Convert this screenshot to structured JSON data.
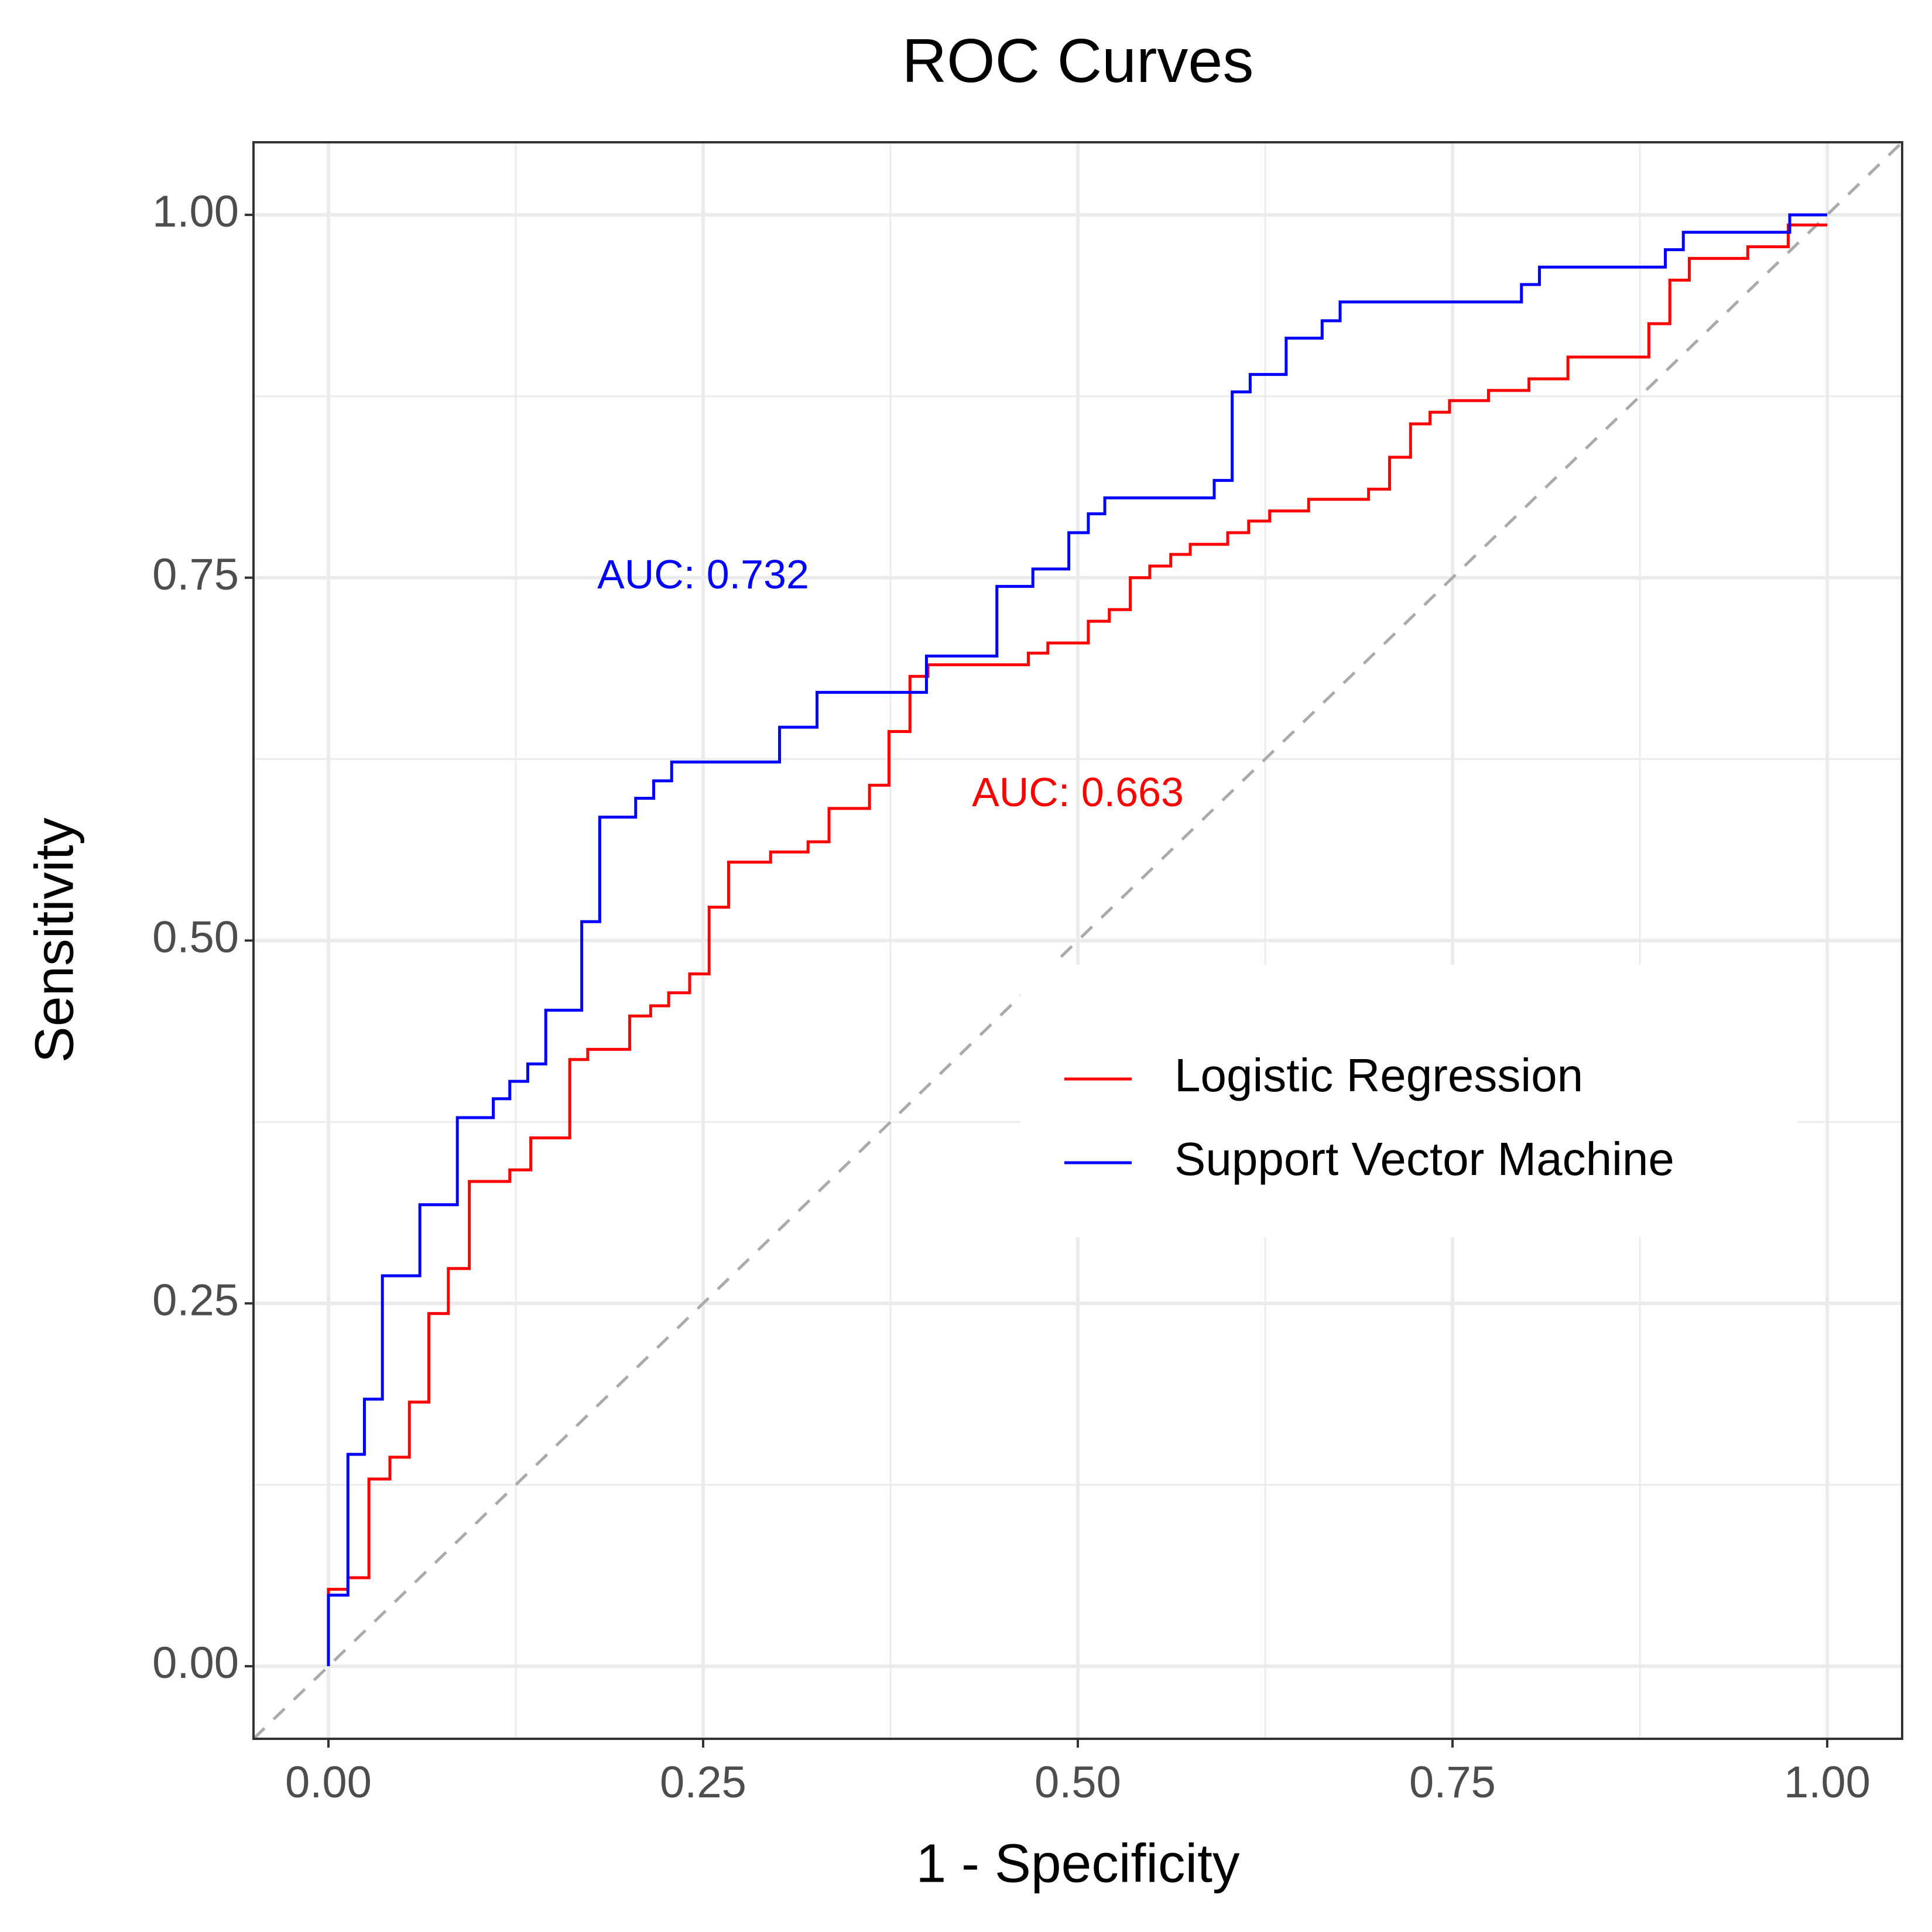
{
  "chart_data": {
    "type": "line",
    "title": "ROC Curves",
    "x_label": "1 - Specificity",
    "y_label": "Sensitivity",
    "xlim": [
      -0.05,
      1.05
    ],
    "ylim": [
      -0.05,
      1.05
    ],
    "xticks": [
      {
        "value": 0,
        "label": "0.00"
      },
      {
        "value": 0.25,
        "label": "0.25"
      },
      {
        "value": 0.5,
        "label": "0.50"
      },
      {
        "value": 0.75,
        "label": "0.75"
      },
      {
        "value": 1,
        "label": "1.00"
      }
    ],
    "yticks": [
      {
        "value": 0,
        "label": "0.00"
      },
      {
        "value": 0.25,
        "label": "0.25"
      },
      {
        "value": 0.5,
        "label": "0.50"
      },
      {
        "value": 0.75,
        "label": "0.75"
      },
      {
        "value": 1,
        "label": "1.00"
      }
    ],
    "grid": true,
    "legend_position": "right",
    "annotations": [
      {
        "text": "AUC: 0.732",
        "color": "#0000ff"
      },
      {
        "text": "AUC: 0.663",
        "color": "#ff0000"
      }
    ],
    "series": [
      {
        "name": "Logistic Regression",
        "color": "#ff0000",
        "x": [
          0,
          0,
          0.013,
          0.013,
          0.027,
          0.027,
          0.041,
          0.041,
          0.054,
          0.054,
          0.067,
          0.067,
          0.08,
          0.08,
          0.094,
          0.094,
          0.121,
          0.121,
          0.135,
          0.135,
          0.161,
          0.161,
          0.173,
          0.173,
          0.201,
          0.201,
          0.215,
          0.215,
          0.227,
          0.227,
          0.241,
          0.241,
          0.254,
          0.254,
          0.267,
          0.267,
          0.295,
          0.295,
          0.32,
          0.32,
          0.334,
          0.334,
          0.361,
          0.361,
          0.374,
          0.374,
          0.388,
          0.388,
          0.4,
          0.4,
          0.467,
          0.467,
          0.48,
          0.48,
          0.507,
          0.507,
          0.521,
          0.521,
          0.535,
          0.535,
          0.548,
          0.548,
          0.562,
          0.562,
          0.575,
          0.575,
          0.6,
          0.6,
          0.614,
          0.614,
          0.628,
          0.628,
          0.654,
          0.654,
          0.694,
          0.694,
          0.708,
          0.708,
          0.722,
          0.722,
          0.735,
          0.735,
          0.748,
          0.748,
          0.774,
          0.774,
          0.801,
          0.801,
          0.827,
          0.827,
          0.881,
          0.881,
          0.895,
          0.895,
          0.908,
          0.908,
          0.947,
          0.947,
          0.974,
          0.974,
          1.0
        ],
        "values": [
          0,
          0.053,
          0.053,
          0.061,
          0.061,
          0.129,
          0.129,
          0.144,
          0.144,
          0.182,
          0.182,
          0.243,
          0.243,
          0.274,
          0.274,
          0.334,
          0.334,
          0.342,
          0.342,
          0.364,
          0.364,
          0.418,
          0.418,
          0.425,
          0.425,
          0.448,
          0.448,
          0.455,
          0.455,
          0.464,
          0.464,
          0.477,
          0.477,
          0.523,
          0.523,
          0.554,
          0.554,
          0.561,
          0.561,
          0.568,
          0.568,
          0.591,
          0.591,
          0.607,
          0.607,
          0.644,
          0.644,
          0.682,
          0.682,
          0.69,
          0.69,
          0.698,
          0.698,
          0.705,
          0.705,
          0.72,
          0.72,
          0.728,
          0.728,
          0.75,
          0.75,
          0.758,
          0.758,
          0.766,
          0.766,
          0.773,
          0.773,
          0.781,
          0.781,
          0.789,
          0.789,
          0.796,
          0.796,
          0.804,
          0.804,
          0.811,
          0.811,
          0.833,
          0.833,
          0.856,
          0.856,
          0.864,
          0.864,
          0.872,
          0.872,
          0.879,
          0.879,
          0.887,
          0.887,
          0.902,
          0.902,
          0.925,
          0.925,
          0.955,
          0.955,
          0.97,
          0.97,
          0.978,
          0.978,
          0.993,
          0.993
        ]
      },
      {
        "name": "Support Vector Machine",
        "color": "#0000ff",
        "x": [
          0,
          0,
          0.013,
          0.013,
          0.024,
          0.024,
          0.036,
          0.036,
          0.061,
          0.061,
          0.086,
          0.086,
          0.11,
          0.11,
          0.121,
          0.121,
          0.133,
          0.133,
          0.145,
          0.145,
          0.169,
          0.169,
          0.181,
          0.181,
          0.205,
          0.205,
          0.217,
          0.217,
          0.229,
          0.229,
          0.301,
          0.301,
          0.326,
          0.326,
          0.399,
          0.399,
          0.446,
          0.446,
          0.47,
          0.47,
          0.494,
          0.494,
          0.507,
          0.507,
          0.518,
          0.518,
          0.591,
          0.591,
          0.603,
          0.603,
          0.615,
          0.615,
          0.639,
          0.639,
          0.663,
          0.663,
          0.675,
          0.675,
          0.796,
          0.796,
          0.808,
          0.808,
          0.892,
          0.892,
          0.904,
          0.904,
          0.975,
          0.975,
          1.0
        ],
        "values": [
          0,
          0.049,
          0.049,
          0.146,
          0.146,
          0.184,
          0.184,
          0.269,
          0.269,
          0.318,
          0.318,
          0.378,
          0.378,
          0.391,
          0.391,
          0.403,
          0.403,
          0.415,
          0.415,
          0.452,
          0.452,
          0.513,
          0.513,
          0.585,
          0.585,
          0.598,
          0.598,
          0.61,
          0.61,
          0.623,
          0.623,
          0.647,
          0.647,
          0.671,
          0.671,
          0.696,
          0.696,
          0.744,
          0.744,
          0.756,
          0.756,
          0.781,
          0.781,
          0.794,
          0.794,
          0.805,
          0.805,
          0.817,
          0.817,
          0.878,
          0.878,
          0.89,
          0.89,
          0.915,
          0.915,
          0.927,
          0.927,
          0.94,
          0.94,
          0.952,
          0.952,
          0.964,
          0.964,
          0.976,
          0.976,
          0.988,
          0.988,
          1.0,
          1.0
        ]
      }
    ]
  }
}
